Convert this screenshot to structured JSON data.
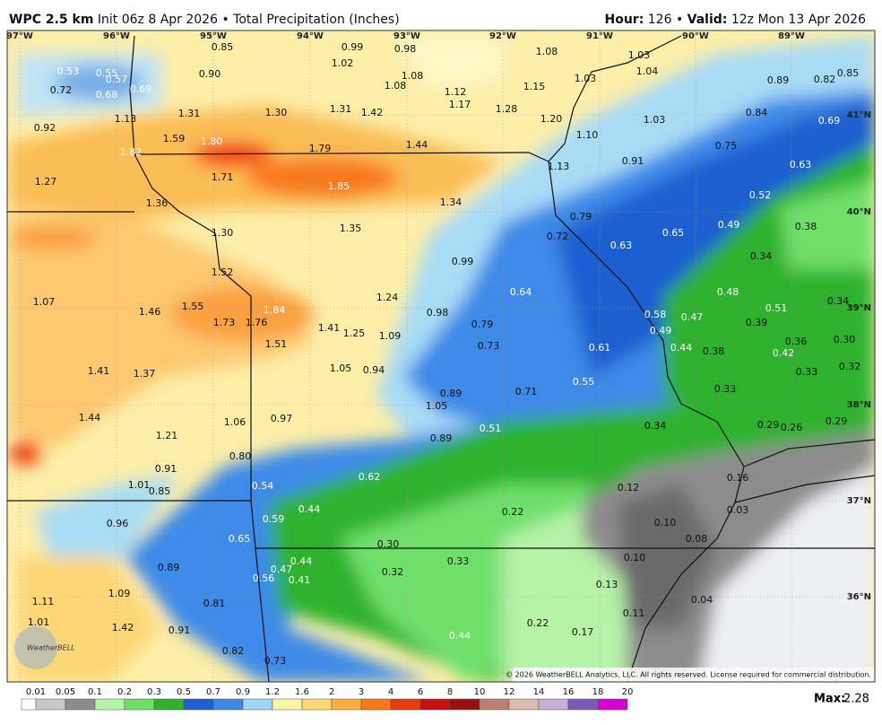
{
  "header": {
    "model": "WPC 2.5 km",
    "init": "Init 06z 8 Apr 2026",
    "separator": "•",
    "product": "Total Precipitation (Inches)",
    "hour_label": "Hour:",
    "hour": 126,
    "valid_label": "Valid:",
    "valid": "12z Mon 13 Apr 2026"
  },
  "map": {
    "longitudes": [
      "97°W",
      "96°W",
      "95°W",
      "94°W",
      "93°W",
      "92°W",
      "91°W",
      "90°W",
      "89°W"
    ],
    "latitudes": [
      "41°N",
      "40°N",
      "39°N",
      "38°N",
      "37°N",
      "36°N"
    ],
    "values": [
      0.85,
      0.99,
      0.98,
      1.08,
      1.03,
      0.53,
      0.55,
      0.57,
      1.02,
      1.04,
      0.85,
      0.72,
      0.68,
      0.69,
      0.9,
      1.08,
      1.03,
      0.89,
      0.82,
      1.08,
      1.12,
      1.15,
      1.17,
      1.28,
      1.31,
      1.3,
      1.31,
      1.42,
      1.2,
      1.03,
      0.84,
      0.69,
      1.13,
      0.92,
      1.59,
      1.8,
      1.79,
      1.44,
      1.1,
      0.75,
      1.82,
      0.91,
      1.13,
      0.63,
      1.71,
      1.85,
      1.27,
      1.36,
      1.34,
      0.52,
      0.79,
      0.49,
      0.38,
      0.65,
      0.63,
      0.72,
      1.3,
      1.35,
      0.99,
      0.34,
      1.52,
      0.64,
      0.48,
      0.34,
      1.07,
      1.55,
      1.24,
      0.98,
      1.84,
      0.51,
      0.58,
      0.47,
      1.46,
      1.73,
      1.76,
      1.41,
      1.25,
      1.09,
      0.79,
      0.39,
      0.49,
      1.51,
      0.73,
      0.61,
      0.44,
      0.38,
      0.36,
      0.3,
      0.42,
      1.41,
      1.37,
      1.05,
      0.94,
      0.55,
      0.33,
      0.32,
      0.89,
      0.71,
      0.33,
      1.05,
      1.44,
      0.97,
      1.06,
      0.34,
      0.29,
      0.26,
      0.29,
      0.51,
      1.21,
      0.89,
      0.8,
      0.91,
      0.62,
      0.16,
      1.01,
      0.85,
      0.54,
      0.12,
      0.96,
      0.44,
      0.22,
      0.03,
      0.1,
      0.59,
      0.65,
      0.08,
      0.3,
      0.44,
      0.33,
      0.1,
      0.89,
      0.47,
      0.32,
      0.56,
      0.41,
      0.13,
      1.09,
      0.04,
      1.11,
      0.81,
      0.11,
      1.01,
      1.42,
      0.91,
      0.22,
      0.17,
      0.44,
      0.82,
      0.73
    ],
    "value_labels": [
      "0.85",
      "0.99",
      "0.98",
      "1.08",
      "1.03",
      "0.53",
      "0.55",
      "0.57",
      "1.02",
      "1.04",
      "0.85",
      "0.72",
      "0.68",
      "0.69",
      "0.90",
      "1.08",
      "1.03",
      "0.89",
      "0.82",
      "1.08",
      "1.12",
      "1.15",
      "1.17",
      "1.28",
      "1.31",
      "1.30",
      "1.31",
      "1.42",
      "1.20",
      "1.03",
      "0.84",
      "0.69",
      "1.13",
      "0.92",
      "1.59",
      "1.80",
      "1.79",
      "1.44",
      "1.10",
      "0.75",
      "1.82",
      "0.91",
      "1.13",
      "0.63",
      "1.71",
      "1.85",
      "1.27",
      "1.36",
      "1.34",
      "0.52",
      "0.79",
      "0.49",
      "0.38",
      "0.65",
      "0.63",
      "0.72",
      "1.30",
      "1.35",
      "0.99",
      "0.34",
      "1.52",
      "0.64",
      "0.48",
      "0.34",
      "1.07",
      "1.55",
      "1.24",
      "0.98",
      "1.84",
      "0.51",
      "0.58",
      "0.47",
      "1.46",
      "1.73",
      "1.76",
      "1.41",
      "1.25",
      "1.09",
      "0.79",
      "0.39",
      "0.49",
      "1.51",
      "0.73",
      "0.61",
      "0.44",
      "0.38",
      "0.36",
      "0.30",
      "0.42",
      "1.41",
      "1.37",
      "1.05",
      "0.94",
      "0.55",
      "0.33",
      "0.32",
      "0.89",
      "0.71",
      "0.33",
      "1.05",
      "1.44",
      "0.97",
      "1.06",
      "0.34",
      "0.29",
      "0.26",
      "0.29",
      "0.51",
      "1.21",
      "0.89",
      "0.80",
      "0.91",
      "0.62",
      "0.16",
      "1.01",
      "0.85",
      "0.54",
      "0.12",
      "0.96",
      "0.44",
      "0.22",
      "0.03",
      "0.10",
      "0.59",
      "0.65",
      "0.08",
      "0.30",
      "0.44",
      "0.33",
      "0.10",
      "0.89",
      "0.47",
      "0.32",
      "0.56",
      "0.41",
      "0.13",
      "1.09",
      "0.04",
      "1.11",
      "0.81",
      "0.11",
      "1.01",
      "1.42",
      "0.91",
      "0.22",
      "0.17",
      "0.44",
      "0.82",
      "0.73"
    ],
    "copyright": "© 2026 WeatherBELL Analytics, LLC. All rights reserved. License required for commercial distribution.",
    "logo": "WeatherBELL"
  },
  "legend": {
    "labels": [
      0.01,
      0.05,
      0.1,
      0.2,
      0.3,
      0.5,
      0.7,
      0.9,
      1.2,
      1.6,
      2,
      3,
      4,
      6,
      8,
      10,
      12,
      14,
      16,
      18,
      20
    ],
    "colors": [
      "#ffffff",
      "#c8c8c8",
      "#8c8c8c",
      "#b6f2a8",
      "#6ee06a",
      "#2db22d",
      "#1d5fd0",
      "#3c8ae8",
      "#9ed4f5",
      "#fdf5a6",
      "#fdd775",
      "#fbae3c",
      "#f8751a",
      "#e83a0c",
      "#c81010",
      "#951010",
      "#bb7f74",
      "#dcbcb0",
      "#c2b0d6",
      "#7a5cb5",
      "#d400d4"
    ]
  },
  "max_label": "Max:",
  "max": 2.28
}
